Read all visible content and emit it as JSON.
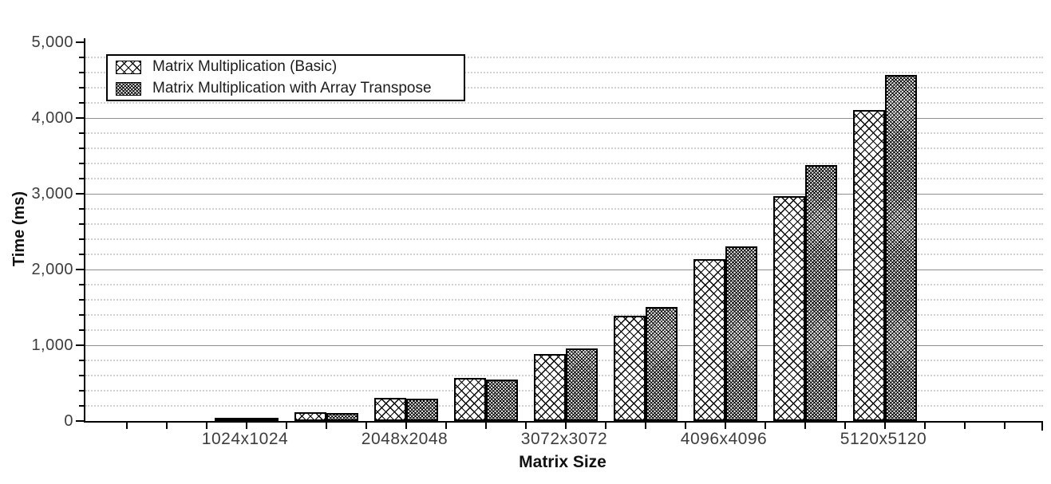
{
  "chart_data": {
    "type": "bar",
    "title": "",
    "xlabel": "Matrix Size",
    "ylabel": "Time (ms)",
    "x": [
      1024,
      1536,
      2048,
      2560,
      3072,
      3584,
      4096,
      4608,
      5120
    ],
    "x_tick_labels": [
      "1024x1024",
      "2048x2048",
      "3072x3072",
      "4096x4096",
      "5120x5120"
    ],
    "x_labeled_values": [
      1024,
      2048,
      3072,
      4096,
      5120
    ],
    "series": [
      {
        "name": "Matrix Multiplication (Basic)",
        "pattern": "open-crosshatch",
        "values": [
          42,
          120,
          300,
          570,
          880,
          1390,
          2140,
          2970,
          4100
        ]
      },
      {
        "name": "Matrix Multiplication with Array Transpose",
        "pattern": "dense-crosshatch",
        "values": [
          38,
          110,
          290,
          545,
          960,
          1505,
          2300,
          3380,
          4570
        ]
      }
    ],
    "ylim": [
      0,
      5050
    ],
    "y_major_ticks": [
      0,
      1000,
      2000,
      3000,
      4000,
      5000
    ],
    "y_tick_labels": [
      "0",
      "1,000",
      "2,000",
      "3,000",
      "4,000",
      "5,000"
    ],
    "y_minor_step": 200,
    "grid": "major-solid, minor-dotted",
    "legend_position": "top-left",
    "bar_fill": "black-hatch-on-white",
    "colors": {
      "background": "#ffffff",
      "axis": "#000000",
      "major_grid": "#8e8e8e",
      "minor_grid": "#cfcfcf",
      "tick_label": "#3d3d3d",
      "title_text": "#111111"
    }
  }
}
